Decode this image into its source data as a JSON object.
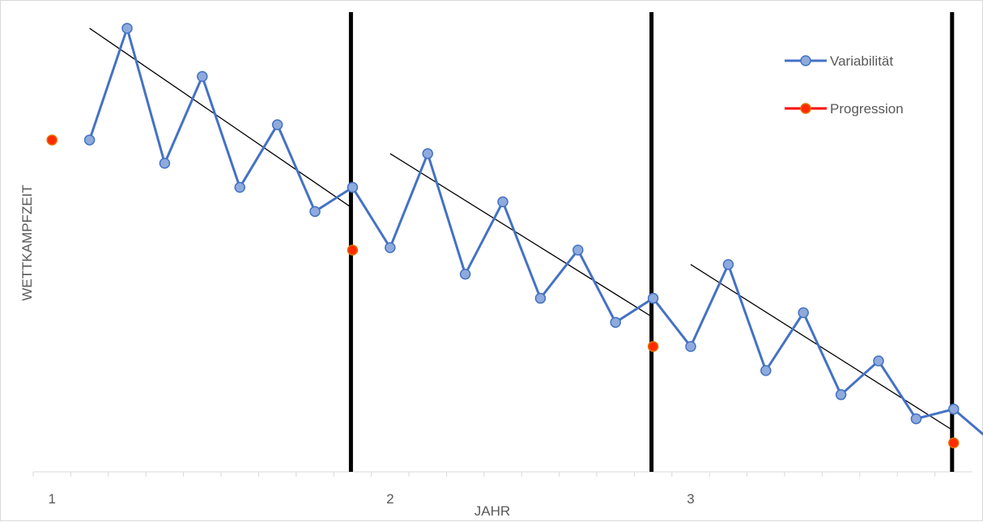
{
  "chart_data": {
    "type": "line",
    "xlabel": "JAHR",
    "ylabel": "WETTKAMPFZEIT",
    "x_tick_labels": [
      {
        "label": "1",
        "index": 0
      },
      {
        "label": "2",
        "index": 9
      },
      {
        "label": "3",
        "index": 17
      }
    ],
    "x_range": [
      -0.5,
      24.5
    ],
    "y_range": [
      0,
      560
    ],
    "y_tick_labels": "none",
    "grid": false,
    "legend_position": "top-right",
    "series": [
      {
        "name": "Variabilität",
        "color": "#4472c4",
        "marker_fill": "#8faadc",
        "x": [
          1,
          2,
          3,
          4,
          5,
          6,
          7,
          8,
          9,
          10,
          11,
          12,
          13,
          14,
          15,
          16,
          17,
          18,
          19,
          20,
          21,
          22,
          23,
          24,
          25
        ],
        "values": [
          413,
          552,
          384,
          492,
          354,
          432,
          324,
          354,
          279,
          396,
          246,
          336,
          216,
          276,
          186,
          216,
          156,
          258,
          126,
          198,
          96,
          138,
          66,
          78,
          38
        ]
      },
      {
        "name": "Progression",
        "color": "#ff0000",
        "marker_fill": "#ff2a00",
        "x": [
          0,
          8,
          16,
          24
        ],
        "values": [
          413,
          276,
          156,
          36
        ]
      }
    ],
    "trend_lines": [
      {
        "x": [
          1,
          8
        ],
        "values": [
          552,
          328
        ]
      },
      {
        "x": [
          9,
          16
        ],
        "values": [
          396,
          192
        ]
      },
      {
        "x": [
          17,
          24
        ],
        "values": [
          258,
          51
        ]
      }
    ],
    "year_separators": [
      8,
      16,
      24
    ]
  }
}
